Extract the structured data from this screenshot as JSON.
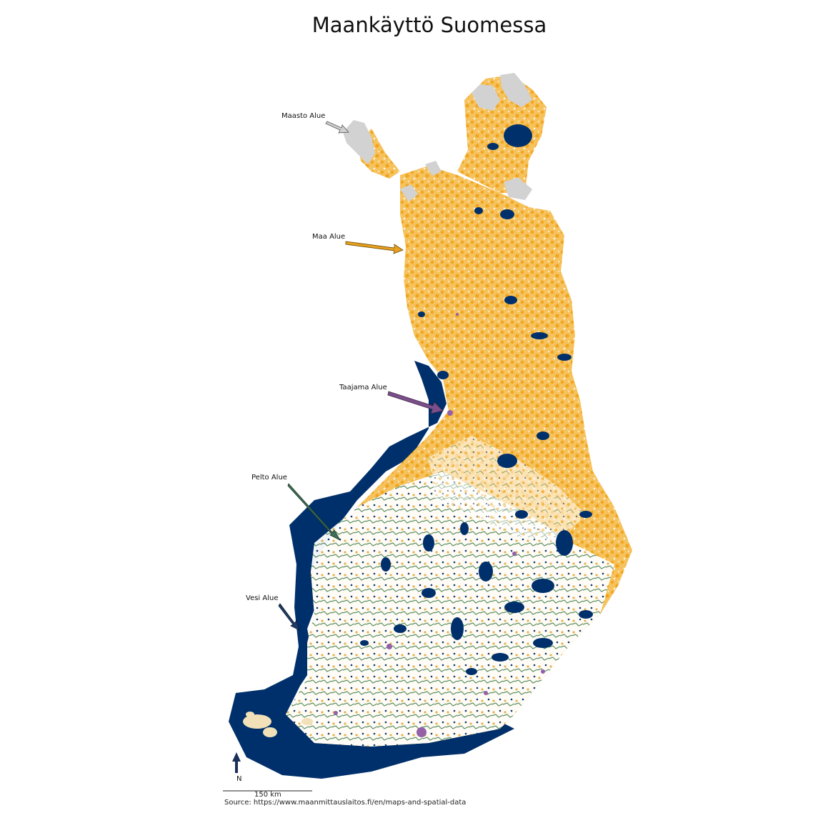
{
  "title": "Maankäyttö Suomessa",
  "legend_annotations": [
    {
      "id": "maasto",
      "label": "Maasto Alue",
      "color": "#d0d0d0"
    },
    {
      "id": "maa",
      "label": "Maa Alue",
      "color": "#e8a020"
    },
    {
      "id": "taajama",
      "label": "Taajama Alue",
      "color": "#7b4f8a"
    },
    {
      "id": "pelto",
      "label": "Pelto Alue",
      "color": "#3f6e55"
    },
    {
      "id": "vesi",
      "label": "Vesi Alue",
      "color": "#1f3b66"
    }
  ],
  "colors": {
    "water": "#00306b",
    "land_orange": "#f2ae2e",
    "terrain_grey": "#d2d2d2",
    "field_green": "#4f8a5e",
    "urban_purple": "#9460a8",
    "background": "#ffffff"
  },
  "north_arrow": {
    "label": "N"
  },
  "scale_bar": {
    "label": "150 km"
  },
  "source": "Source: https://www.maanmittauslaitos.fi/en/maps-and-spatial-data"
}
